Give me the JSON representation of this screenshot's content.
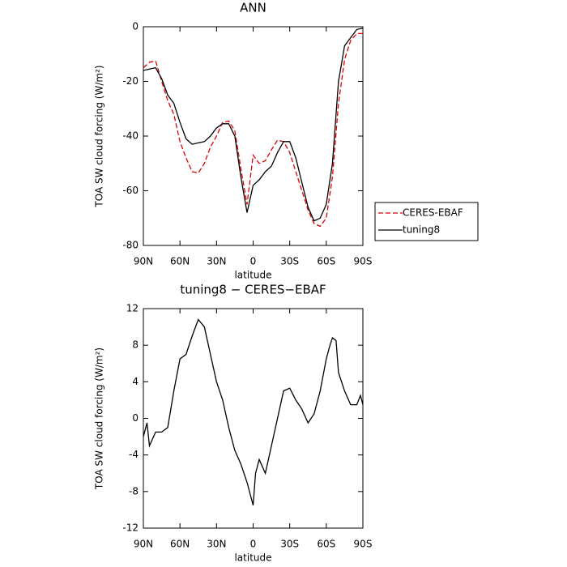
{
  "chart_data": [
    {
      "type": "line",
      "title": "ANN",
      "xlabel": "latitude",
      "ylabel": "TOA SW cloud forcing (W/m²)",
      "x": [
        90,
        85,
        80,
        75,
        70,
        65,
        60,
        55,
        50,
        45,
        40,
        35,
        30,
        25,
        20,
        15,
        10,
        5,
        0,
        -5,
        -10,
        -15,
        -20,
        -25,
        -30,
        -35,
        -40,
        -45,
        -50,
        -55,
        -60,
        -65,
        -70,
        -75,
        -80,
        -85,
        -90
      ],
      "series": [
        {
          "name": "CERES-EBAF",
          "color": "#e00000",
          "linestyle": "dashed",
          "values": [
            -15,
            -13,
            -12.5,
            -20,
            -27,
            -32,
            -42,
            -48,
            -53,
            -53.5,
            -50,
            -44,
            -40,
            -35,
            -34.5,
            -38,
            -52,
            -65,
            -47,
            -50,
            -49,
            -45,
            -41.5,
            -42,
            -46,
            -53,
            -60,
            -67,
            -72,
            -73,
            -70,
            -55,
            -28,
            -12,
            -5,
            -2.5,
            -2.5
          ]
        },
        {
          "name": "tuning8",
          "color": "#000000",
          "linestyle": "solid",
          "values": [
            -16,
            -15.5,
            -15,
            -19,
            -25,
            -28,
            -35,
            -41,
            -43,
            -42.5,
            -42,
            -40,
            -37,
            -35.5,
            -35.5,
            -40,
            -55,
            -68,
            -58,
            -56,
            -53,
            -51,
            -46,
            -42,
            -42,
            -48,
            -57,
            -66,
            -71,
            -70,
            -65,
            -50,
            -20,
            -7,
            -4,
            -1,
            -0.5
          ]
        }
      ],
      "xlim": [
        90,
        -90
      ],
      "xticks": [
        {
          "value": 90,
          "label": "90N"
        },
        {
          "value": 60,
          "label": "60N"
        },
        {
          "value": 30,
          "label": "30N"
        },
        0,
        {
          "value": -30,
          "label": "30S"
        },
        {
          "value": -60,
          "label": "60S"
        },
        {
          "value": -90,
          "label": "90S"
        }
      ],
      "ylim": [
        -80,
        0
      ],
      "yticks": [
        -80,
        -60,
        -40,
        -20,
        0
      ],
      "legend": "right"
    },
    {
      "type": "line",
      "title": "tuning8 − CERES−EBAF",
      "xlabel": "latitude",
      "ylabel": "TOA SW cloud forcing (W/m²)",
      "x": [
        90,
        87,
        85,
        80,
        75,
        70,
        65,
        60,
        55,
        50,
        45,
        40,
        35,
        30,
        25,
        20,
        15,
        10,
        5,
        2,
        0,
        -2,
        -5,
        -10,
        -15,
        -20,
        -25,
        -30,
        -35,
        -40,
        -45,
        -50,
        -55,
        -60,
        -63,
        -65,
        -68,
        -70,
        -75,
        -80,
        -85,
        -88,
        -90
      ],
      "series": [
        {
          "name": "tuning8 − CERES−EBAF",
          "color": "#000000",
          "linestyle": "solid",
          "values": [
            -2,
            -0.5,
            -3,
            -1.5,
            -1.5,
            -1,
            3,
            6.5,
            7,
            9,
            10.8,
            10,
            7,
            4,
            2,
            -1,
            -3.5,
            -5,
            -7,
            -8.5,
            -9.5,
            -6,
            -4.5,
            -6,
            -3,
            0,
            3,
            3.3,
            2,
            1,
            -0.5,
            0.5,
            3,
            6.5,
            8,
            8.8,
            8.5,
            5,
            3,
            1.5,
            1.5,
            2.5,
            1.5
          ]
        }
      ],
      "xlim": [
        90,
        -90
      ],
      "xticks": [
        {
          "value": 90,
          "label": "90N"
        },
        {
          "value": 60,
          "label": "60N"
        },
        {
          "value": 30,
          "label": "30N"
        },
        0,
        {
          "value": -30,
          "label": "30S"
        },
        {
          "value": -60,
          "label": "60S"
        },
        {
          "value": -90,
          "label": "90S"
        }
      ],
      "ylim": [
        -12,
        12
      ],
      "yticks": [
        -12,
        -8,
        -4,
        0,
        4,
        8,
        12
      ]
    }
  ]
}
